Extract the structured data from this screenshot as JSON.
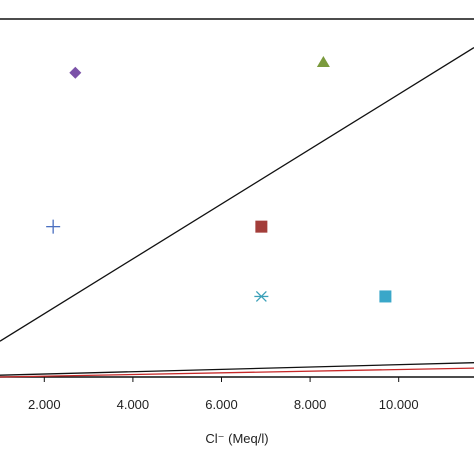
{
  "chart_data": {
    "type": "scatter",
    "xlabel": "Cl⁻ (Meq/l)",
    "x_ticks": [
      {
        "value": 2,
        "label": "2.000"
      },
      {
        "value": 4,
        "label": "4.000"
      },
      {
        "value": 6,
        "label": "6.000"
      },
      {
        "value": 8,
        "label": "8.000"
      },
      {
        "value": 10,
        "label": "10.000"
      }
    ],
    "xlim": [
      1.0,
      11.7
    ],
    "ylim": [
      0,
      10
    ],
    "grid": false,
    "points": [
      {
        "x": 2.7,
        "y": 8.5,
        "marker": "diamond",
        "color": "#7b52a8"
      },
      {
        "x": 8.3,
        "y": 8.8,
        "marker": "triangle",
        "color": "#7a9a3c"
      },
      {
        "x": 2.2,
        "y": 4.2,
        "marker": "plus",
        "color": "#4a6fc0"
      },
      {
        "x": 6.9,
        "y": 4.2,
        "marker": "square",
        "color": "#a33d3a"
      },
      {
        "x": 6.9,
        "y": 2.25,
        "marker": "asterisk",
        "color": "#3aa0b8"
      },
      {
        "x": 9.7,
        "y": 2.25,
        "marker": "square",
        "color": "#3aa7c9"
      }
    ],
    "lines": [
      {
        "x": [
          1.0,
          11.7
        ],
        "y": [
          1.0,
          9.2
        ],
        "color": "#111111"
      },
      {
        "x": [
          1.0,
          11.7
        ],
        "y": [
          0.05,
          0.4
        ],
        "color": "#111111"
      },
      {
        "x": [
          1.0,
          11.7
        ],
        "y": [
          0.0,
          0.25
        ],
        "color": "#c62828"
      }
    ]
  }
}
